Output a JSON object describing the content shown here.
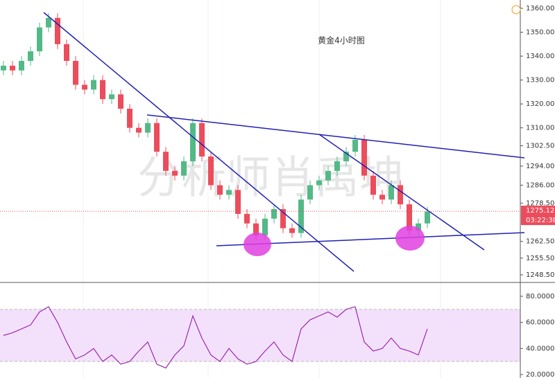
{
  "chart_data": {
    "type": "candlestick",
    "title": "黄金4小时图",
    "watermark": "分析师肖禹坤",
    "up_color": "#53b987",
    "down_color": "#eb4d5c",
    "open": [
      1334,
      1336,
      1334,
      1338,
      1342,
      1352,
      1356,
      1345,
      1338,
      1328,
      1326,
      1330,
      1322,
      1324,
      1318,
      1310,
      1308,
      1312,
      1300,
      1292,
      1290,
      1296,
      1312,
      1298,
      1286,
      1282,
      1284,
      1274,
      1270,
      1265,
      1272,
      1276,
      1268,
      1266,
      1280,
      1286,
      1288,
      1292,
      1296,
      1300,
      1305,
      1290,
      1282,
      1280,
      1286,
      1278,
      1267,
      1270
    ],
    "high": [
      1338,
      1338,
      1340,
      1344,
      1354,
      1358,
      1358,
      1347,
      1340,
      1330,
      1332,
      1332,
      1326,
      1326,
      1320,
      1312,
      1314,
      1314,
      1302,
      1294,
      1298,
      1314,
      1314,
      1300,
      1288,
      1286,
      1286,
      1276,
      1272,
      1274,
      1278,
      1278,
      1270,
      1282,
      1288,
      1290,
      1294,
      1298,
      1302,
      1307,
      1307,
      1292,
      1284,
      1288,
      1288,
      1280,
      1272,
      1277
    ],
    "low": [
      1332,
      1332,
      1332,
      1336,
      1340,
      1350,
      1343,
      1336,
      1326,
      1324,
      1324,
      1320,
      1320,
      1316,
      1308,
      1306,
      1306,
      1298,
      1290,
      1288,
      1288,
      1294,
      1296,
      1284,
      1280,
      1280,
      1272,
      1268,
      1263,
      1263,
      1270,
      1266,
      1264,
      1264,
      1278,
      1284,
      1286,
      1290,
      1294,
      1298,
      1288,
      1280,
      1278,
      1278,
      1276,
      1265,
      1265,
      1268
    ],
    "close": [
      1336,
      1334,
      1338,
      1342,
      1352,
      1356,
      1345,
      1338,
      1328,
      1326,
      1330,
      1322,
      1324,
      1318,
      1310,
      1308,
      1312,
      1300,
      1292,
      1290,
      1296,
      1312,
      1298,
      1286,
      1282,
      1284,
      1274,
      1270,
      1265,
      1272,
      1276,
      1268,
      1266,
      1280,
      1286,
      1288,
      1292,
      1296,
      1300,
      1305,
      1290,
      1282,
      1280,
      1286,
      1278,
      1267,
      1270,
      1275
    ],
    "ylim": [
      1248.5,
      1360
    ],
    "yticks": [
      {
        "value": 1360,
        "label": "1360.00"
      },
      {
        "value": 1350,
        "label": "1350.00"
      },
      {
        "value": 1340,
        "label": "1340.00"
      },
      {
        "value": 1330,
        "label": "1330.00"
      },
      {
        "value": 1320,
        "label": "1320.00"
      },
      {
        "value": 1310,
        "label": "1310.00"
      },
      {
        "value": 1302.5,
        "label": "1302.50"
      },
      {
        "value": 1294,
        "label": "1294.00"
      },
      {
        "value": 1286,
        "label": "1286.00"
      },
      {
        "value": 1278.5,
        "label": "1278.50"
      },
      {
        "value": 1262.5,
        "label": "1262.50"
      },
      {
        "value": 1255.5,
        "label": "1255.50"
      },
      {
        "value": 1248.5,
        "label": "1248.50"
      }
    ],
    "last_price": {
      "value": 1275.12,
      "label": "1275.12"
    },
    "countdown": "03:22:38",
    "rsi": {
      "color": "#9c27b0",
      "band": [
        30,
        70
      ],
      "band_color": "#f3e1fb",
      "values": [
        50,
        52,
        55,
        58,
        68,
        72,
        60,
        45,
        32,
        35,
        40,
        30,
        35,
        28,
        30,
        38,
        45,
        28,
        25,
        35,
        42,
        65,
        48,
        35,
        30,
        40,
        32,
        28,
        30,
        38,
        45,
        35,
        30,
        55,
        62,
        65,
        68,
        64,
        70,
        72,
        45,
        38,
        40,
        48,
        40,
        38,
        35,
        55
      ],
      "ylim": [
        20,
        80
      ],
      "yticks": [
        {
          "value": 80,
          "label": "80.0000"
        },
        {
          "value": 60,
          "label": "60.0000"
        },
        {
          "value": 40,
          "label": "40.0000"
        },
        {
          "value": 20,
          "label": "20.0000"
        }
      ]
    }
  }
}
